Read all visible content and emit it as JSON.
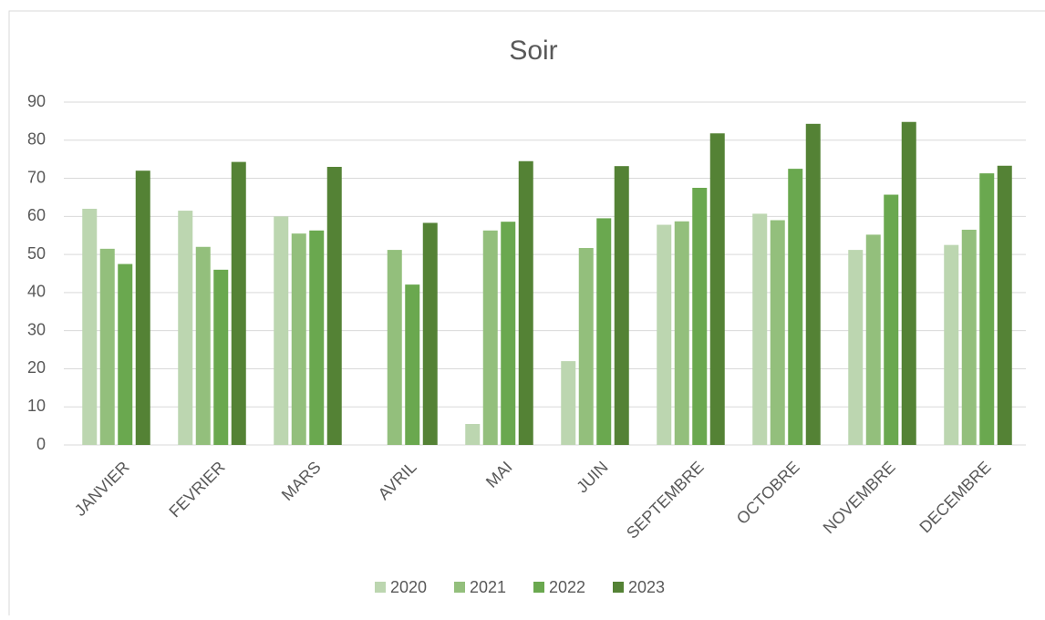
{
  "chart_data": {
    "type": "bar",
    "title": "Soir",
    "categories": [
      "JANVIER",
      "FEVRIER",
      "MARS",
      "AVRIL",
      "MAI",
      "JUIN",
      "SEPTEMBRE",
      "OCTOBRE",
      "NOVEMBRE",
      "DECEMBRE"
    ],
    "series": [
      {
        "name": "2020",
        "color": "#bcd6b0",
        "values": [
          62,
          61.5,
          60,
          null,
          5.5,
          22,
          57.8,
          60.7,
          51.2,
          52.5
        ]
      },
      {
        "name": "2021",
        "color": "#93bf7c",
        "values": [
          51.5,
          52,
          55.5,
          51.2,
          56.3,
          51.7,
          58.7,
          59,
          55.2,
          56.5
        ]
      },
      {
        "name": "2022",
        "color": "#6aa84f",
        "values": [
          47.5,
          46,
          56.3,
          42.1,
          58.6,
          59.5,
          67.5,
          72.5,
          65.7,
          71.3
        ]
      },
      {
        "name": "2023",
        "color": "#548235",
        "values": [
          72,
          74.3,
          73,
          58.3,
          74.5,
          73.2,
          81.8,
          84.3,
          84.8,
          73.3
        ]
      }
    ],
    "ylim": [
      0,
      90
    ],
    "yticks": [
      0,
      10,
      20,
      30,
      40,
      50,
      60,
      70,
      80,
      90
    ],
    "grid": true,
    "legend": "bottom"
  }
}
